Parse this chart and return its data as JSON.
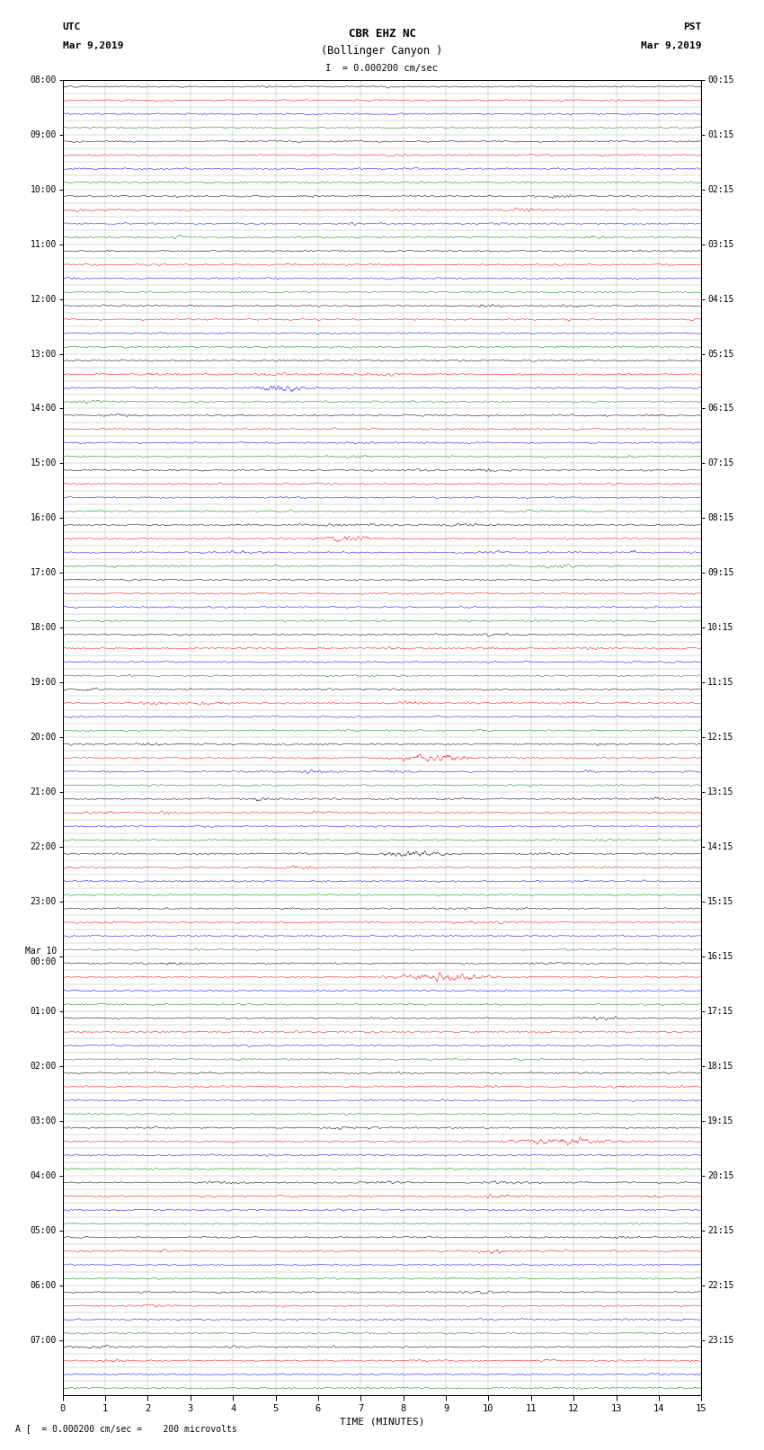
{
  "title_line1": "CBR EHZ NC",
  "title_line2": "(Bollinger Canyon )",
  "scale_label": "I  = 0.000200 cm/sec",
  "footer_label": "A [  = 0.000200 cm/sec =    200 microvolts",
  "utc_label": "UTC",
  "utc_date": "Mar 9,2019",
  "pst_label": "PST",
  "pst_date": "Mar 9,2019",
  "xlabel": "TIME (MINUTES)",
  "left_times": [
    "08:00",
    "09:00",
    "10:00",
    "11:00",
    "12:00",
    "13:00",
    "14:00",
    "15:00",
    "16:00",
    "17:00",
    "18:00",
    "19:00",
    "20:00",
    "21:00",
    "22:00",
    "23:00",
    "Mar 10\n00:00",
    "01:00",
    "02:00",
    "03:00",
    "04:00",
    "05:00",
    "06:00",
    "07:00"
  ],
  "right_times": [
    "00:15",
    "01:15",
    "02:15",
    "03:15",
    "04:15",
    "05:15",
    "06:15",
    "07:15",
    "08:15",
    "09:15",
    "10:15",
    "11:15",
    "12:15",
    "13:15",
    "14:15",
    "15:15",
    "16:15",
    "17:15",
    "18:15",
    "19:15",
    "20:15",
    "21:15",
    "22:15",
    "23:15"
  ],
  "colors": [
    "black",
    "red",
    "blue",
    "green"
  ],
  "n_rows": 96,
  "xlim": [
    0,
    15
  ],
  "noise_scale": 0.06,
  "event_rows": [
    8,
    9,
    10,
    11,
    16,
    17,
    20,
    21,
    22,
    23,
    24,
    27,
    28,
    32,
    33,
    34,
    35,
    36,
    40,
    41,
    44,
    45,
    48,
    49,
    50,
    52,
    53,
    56,
    57,
    60,
    61,
    64,
    65,
    68,
    72,
    73,
    76,
    77,
    80,
    81,
    84,
    85,
    88,
    89,
    92,
    93
  ],
  "event_scale": 0.22,
  "big_event_rows": [
    22,
    33,
    49,
    56,
    65,
    77
  ],
  "big_event_scale": 0.38
}
